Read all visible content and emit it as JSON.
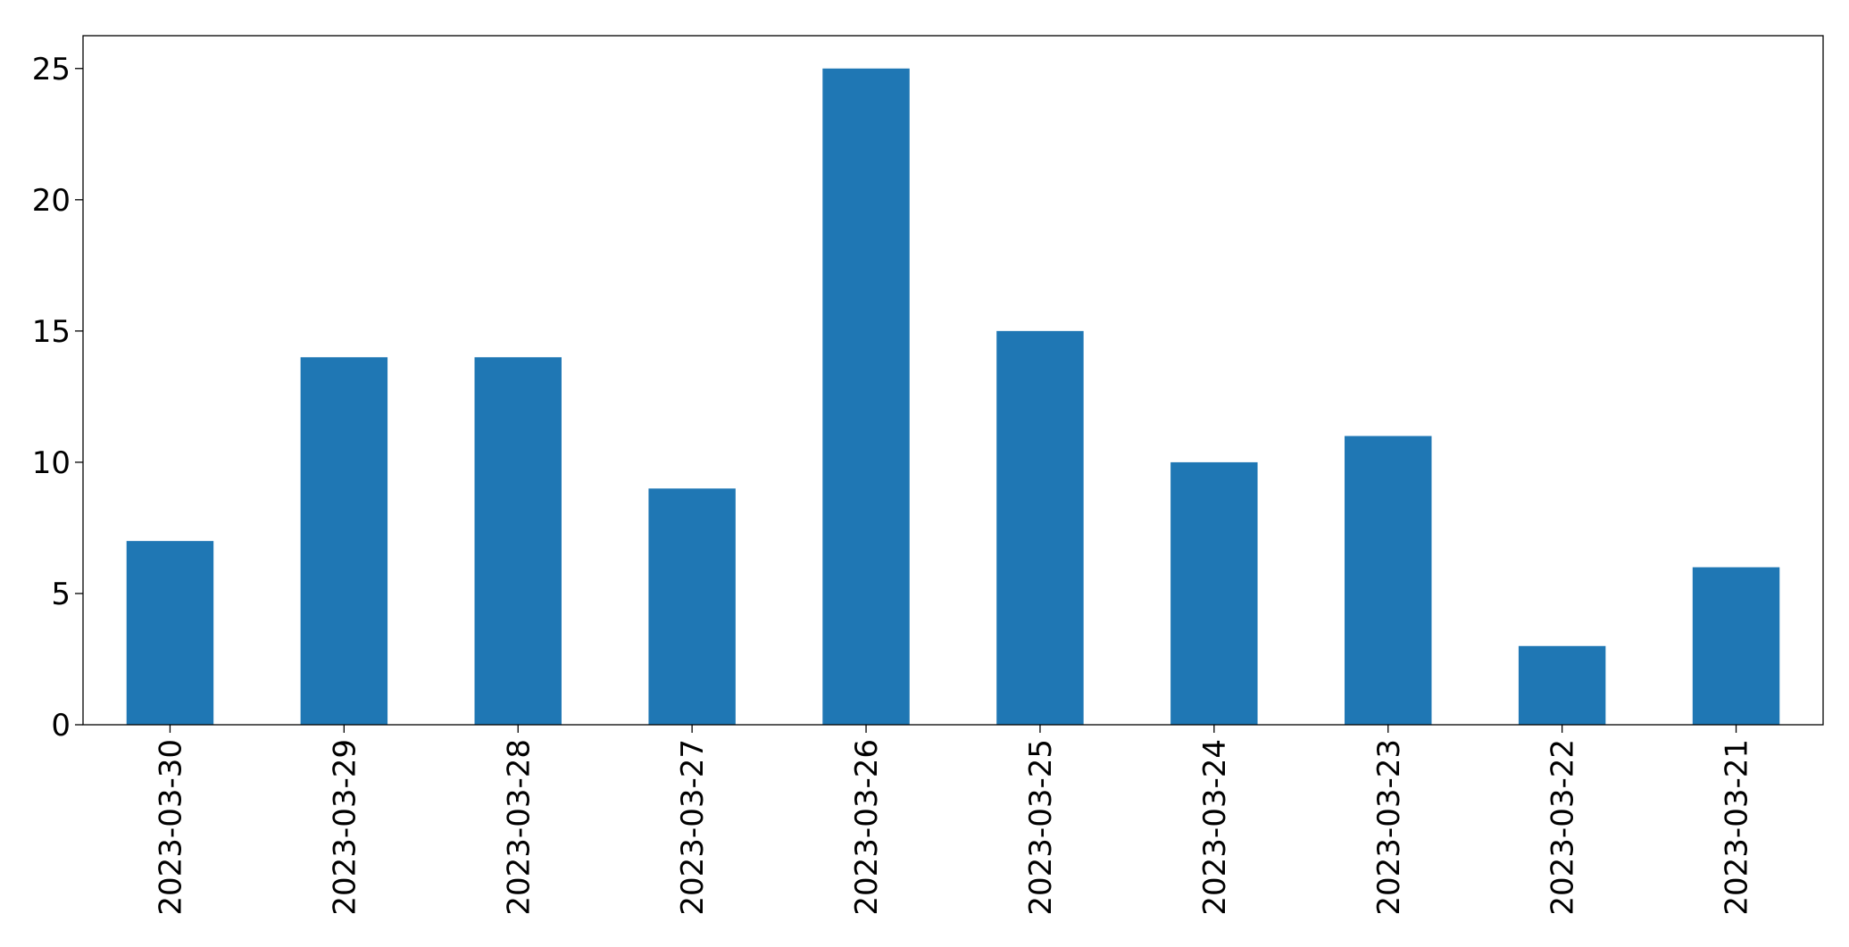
{
  "chart_data": {
    "type": "bar",
    "categories": [
      "2023-03-30",
      "2023-03-29",
      "2023-03-28",
      "2023-03-27",
      "2023-03-26",
      "2023-03-25",
      "2023-03-24",
      "2023-03-23",
      "2023-03-22",
      "2023-03-21"
    ],
    "values": [
      7,
      14,
      14,
      9,
      25,
      15,
      10,
      11,
      3,
      6
    ],
    "color": "#1f77b4",
    "ylim": [
      0,
      26.25
    ],
    "yticks": [
      0,
      5,
      10,
      15,
      20,
      25
    ],
    "grid": false
  }
}
